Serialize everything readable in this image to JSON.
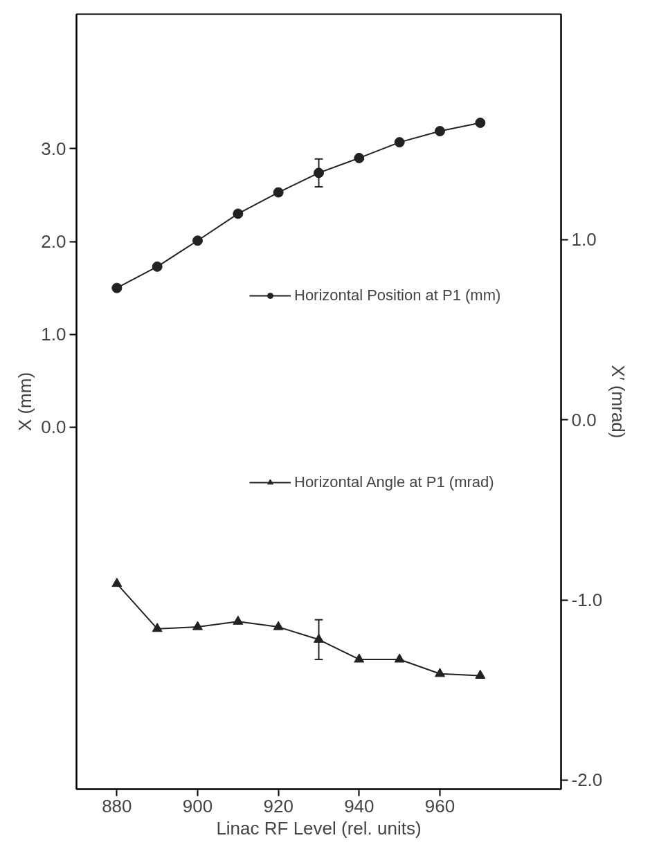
{
  "chart_data": {
    "type": "line",
    "xlabel": "Linac RF Level (rel. units)",
    "ylabel": "X (mm)",
    "y2label": "X′ (mrad)",
    "x": [
      880,
      890,
      900,
      910,
      920,
      930,
      940,
      950,
      960,
      970
    ],
    "series": [
      {
        "name": "Horizontal Position at P1 (mm)",
        "color": "#222222",
        "marker": "circle",
        "values": [
          1.5,
          1.73,
          2.01,
          2.3,
          2.53,
          2.74,
          2.9,
          3.07,
          3.19,
          3.28
        ],
        "errors": [
          null,
          null,
          null,
          null,
          null,
          0.15,
          null,
          null,
          null,
          null
        ]
      },
      {
        "name": "Horizontal Angle at P1 (mrad)",
        "color": "#222222",
        "marker": "triangle",
        "axis": "y2",
        "values": [
          -0.91,
          -1.16,
          -1.15,
          -1.12,
          -1.15,
          -1.22,
          -1.33,
          -1.33,
          -1.41,
          -1.42
        ],
        "errors": [
          null,
          null,
          null,
          null,
          null,
          0.11,
          null,
          null,
          null,
          null
        ]
      }
    ],
    "xlim": [
      870,
      990
    ],
    "xticks": [
      880,
      900,
      920,
      940,
      960
    ],
    "ylim": [
      -3.9,
      4.45
    ],
    "yticks": [
      {
        "value": 0,
        "label": "0.0"
      },
      {
        "value": 1,
        "label": "1.0"
      },
      {
        "value": 2,
        "label": "2.0"
      },
      {
        "value": 3,
        "label": "3.0"
      }
    ],
    "y2lim": [
      -2.05,
      2.25
    ],
    "y2ticks": [
      {
        "value": -2,
        "label": "-2.0"
      },
      {
        "value": -1,
        "label": "-1.0"
      },
      {
        "value": 0,
        "label": "0.0"
      },
      {
        "value": 1,
        "label": "1.0"
      }
    ],
    "grid": false,
    "legend": "center"
  }
}
